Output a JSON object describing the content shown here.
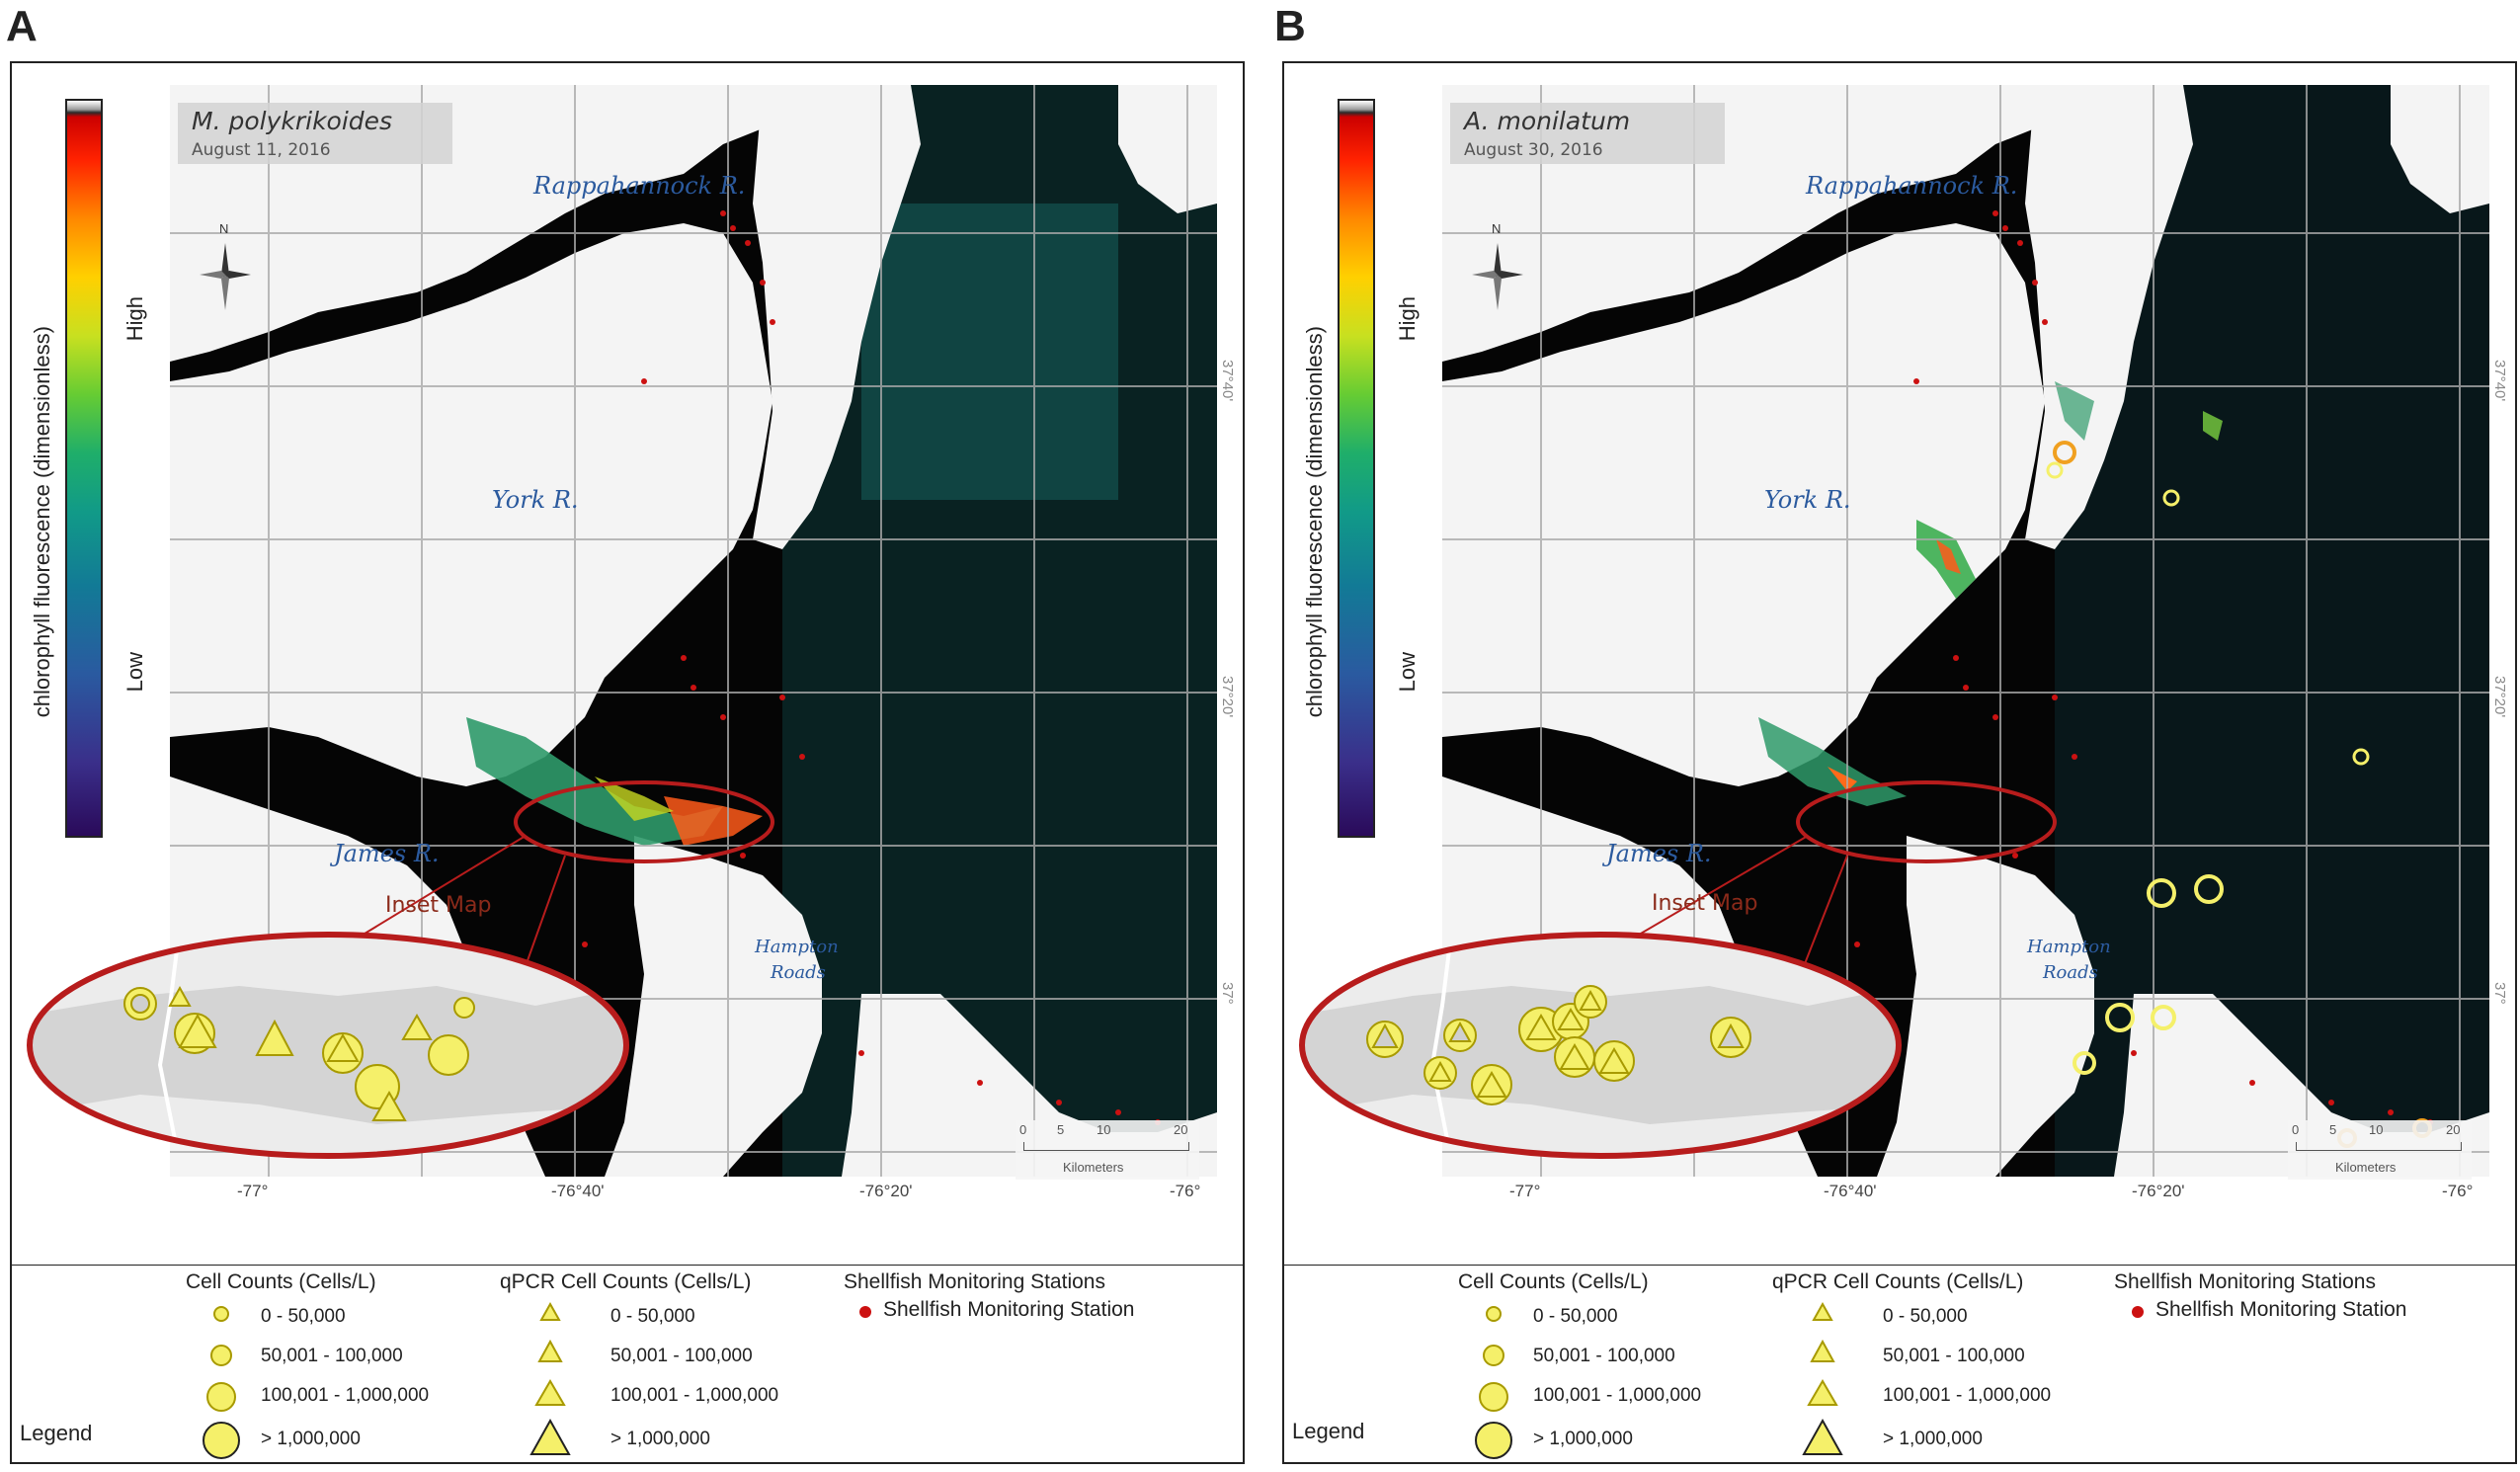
{
  "panels": [
    {
      "letter": "A",
      "species": "M. polykrikoides",
      "date": "August 11, 2016",
      "colorbar": {
        "title": "chlorophyll fluorescence (dimensionless)",
        "high": "High",
        "low": "Low"
      },
      "rivers": {
        "rappahannock": "Rappahannock R.",
        "york": "York R.",
        "james": "James R.",
        "hampton_line1": "Hampton",
        "hampton_line2": "Roads"
      },
      "inset_label": "Inset Map",
      "lon_ticks": [
        "-77°",
        "-76°40'",
        "-76°20'",
        "-76°"
      ],
      "lat_ticks": [
        "37°40'",
        "37°20'",
        "37°"
      ],
      "scale": {
        "ticks": [
          "0",
          "5",
          "10",
          "20"
        ],
        "unit": "Kilometers"
      },
      "north": "N"
    },
    {
      "letter": "B",
      "species": "A. monilatum",
      "date": "August 30, 2016",
      "colorbar": {
        "title": "chlorophyll fluorescence (dimensionless)",
        "high": "High",
        "low": "Low"
      },
      "rivers": {
        "rappahannock": "Rappahannock R.",
        "york": "York R.",
        "james": "James R.",
        "hampton_line1": "Hampton",
        "hampton_line2": "Roads"
      },
      "inset_label": "Inset Map",
      "lon_ticks": [
        "-77°",
        "-76°40'",
        "-76°20'",
        "-76°"
      ],
      "lat_ticks": [
        "37°40'",
        "37°20'",
        "37°"
      ],
      "scale": {
        "ticks": [
          "0",
          "5",
          "10",
          "20"
        ],
        "unit": "Kilometers"
      },
      "north": "N"
    }
  ],
  "legend": {
    "word": "Legend",
    "cell_counts": {
      "title": "Cell Counts (Cells/L)",
      "items": [
        "0 - 50,000",
        "50,001 - 100,000",
        "100,001 - 1,000,000",
        "> 1,000,000"
      ]
    },
    "qpcr": {
      "title": "qPCR Cell Counts (Cells/L)",
      "items": [
        "0 - 50,000",
        "50,001 - 100,000",
        "100,001 - 1,000,000",
        "> 1,000,000"
      ]
    },
    "shellfish": {
      "title": "Shellfish Monitoring Stations",
      "item": "Shellfish Monitoring Station"
    }
  },
  "colors": {
    "land": "#f4f4f4",
    "water": "#050505",
    "shellfish": "#cc1111",
    "marker": "#f5f06a",
    "marker_stroke": "#a89a00",
    "oval": "#b71c1c",
    "river_label": "#2b5a9e"
  }
}
